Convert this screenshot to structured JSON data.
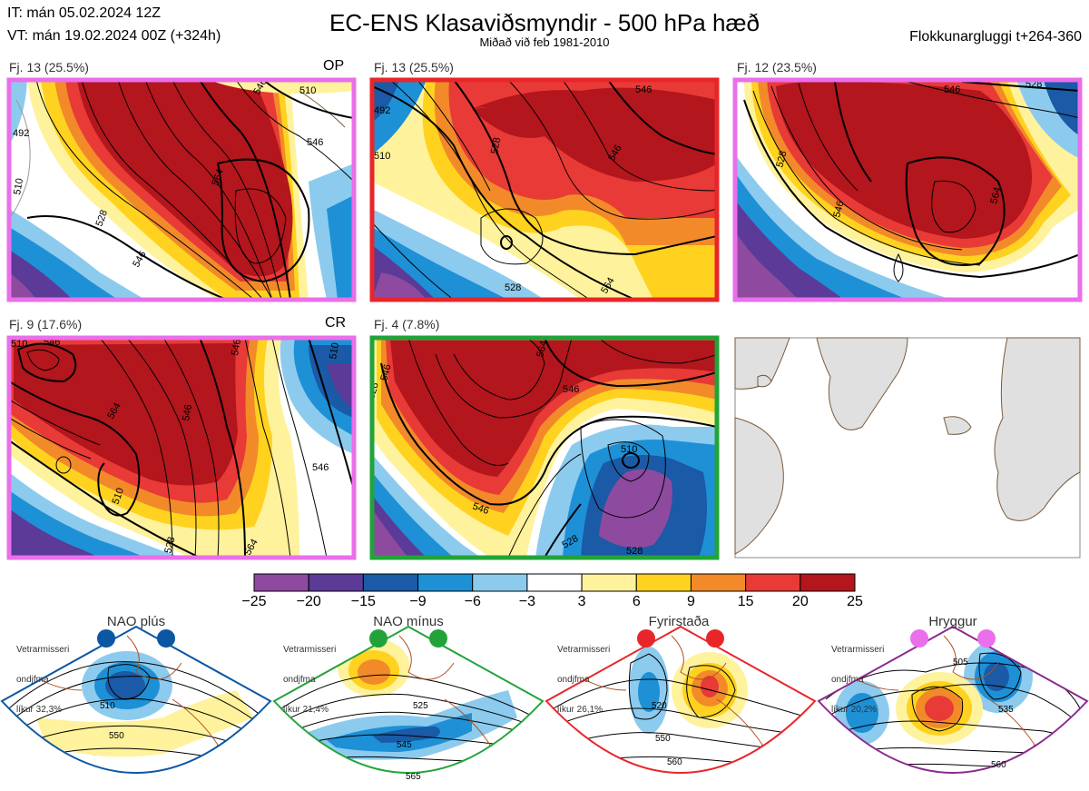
{
  "header": {
    "init_time": "IT: mán 05.02.2024 12Z",
    "valid_time": "VT: mán 19.02.2024 00Z  (+324h)",
    "title": "EC-ENS Klasaviðsmyndir - 500 hPa hæð",
    "subtitle": "Miðað við feb 1981-2010",
    "window": "Flokkunargluggi t+264-360"
  },
  "clusters": [
    {
      "label": "Fj. 13 (25.5%)",
      "tag": "OP",
      "border": "#ea6fea",
      "contours": [
        "492",
        "510",
        "528",
        "546",
        "546",
        "546",
        "564",
        "510"
      ]
    },
    {
      "label": "Fj. 13 (25.5%)",
      "tag": "",
      "border": "#e8262a",
      "contours": [
        "492",
        "510",
        "528",
        "546",
        "528",
        "546",
        "564"
      ]
    },
    {
      "label": "Fj. 12 (23.5%)",
      "tag": "",
      "border": "#ea6fea",
      "contours": [
        "528",
        "546",
        "546",
        "564",
        "528"
      ]
    },
    {
      "label": "Fj. 9 (17.6%)",
      "tag": "CR",
      "border": "#ea6fea",
      "contours": [
        "510",
        "546",
        "546",
        "546",
        "564",
        "528",
        "546",
        "564",
        "510"
      ]
    },
    {
      "label": "Fj. 4 (7.8%)",
      "tag": "",
      "border": "#22a33a",
      "contours": [
        "546",
        "528",
        "564",
        "546",
        "510",
        "528",
        "546",
        "528"
      ]
    }
  ],
  "colorbar": {
    "colors": [
      "#8e4a9e",
      "#5b3a98",
      "#1a5aa6",
      "#1e90d6",
      "#8ccbee",
      "#ffffff",
      "#fff29c",
      "#ffd21f",
      "#f28a2a",
      "#e83a36",
      "#b3161c"
    ],
    "ticks": [
      "−25",
      "−20",
      "−15",
      "−9",
      "−6",
      "−3",
      "3",
      "6",
      "9",
      "15",
      "20",
      "25"
    ]
  },
  "regimes": [
    {
      "title": "NAO plús",
      "prob_lines": [
        "Vetrarmisseri",
        "ondjfma",
        "líkur 32,3%"
      ],
      "color": "#0b57a4",
      "contours": [
        "510",
        "550"
      ]
    },
    {
      "title": "NAO mínus",
      "prob_lines": [
        "Vetrarmisseri",
        "ondjfma",
        "líkur 21,4%"
      ],
      "color": "#22a33a",
      "contours": [
        "525",
        "545",
        "565"
      ]
    },
    {
      "title": "Fyrirstaða",
      "prob_lines": [
        "Vetrarmisseri",
        "ondjfma",
        "líkur 26,1%"
      ],
      "color": "#e8262a",
      "contours": [
        "520",
        "550",
        "560"
      ]
    },
    {
      "title": "Hryggur",
      "prob_lines": [
        "Vetrarmisseri",
        "ondjfma",
        "líkur 20,2%"
      ],
      "color": "#ea6fea",
      "contours": [
        "505",
        "535",
        "560"
      ]
    }
  ]
}
